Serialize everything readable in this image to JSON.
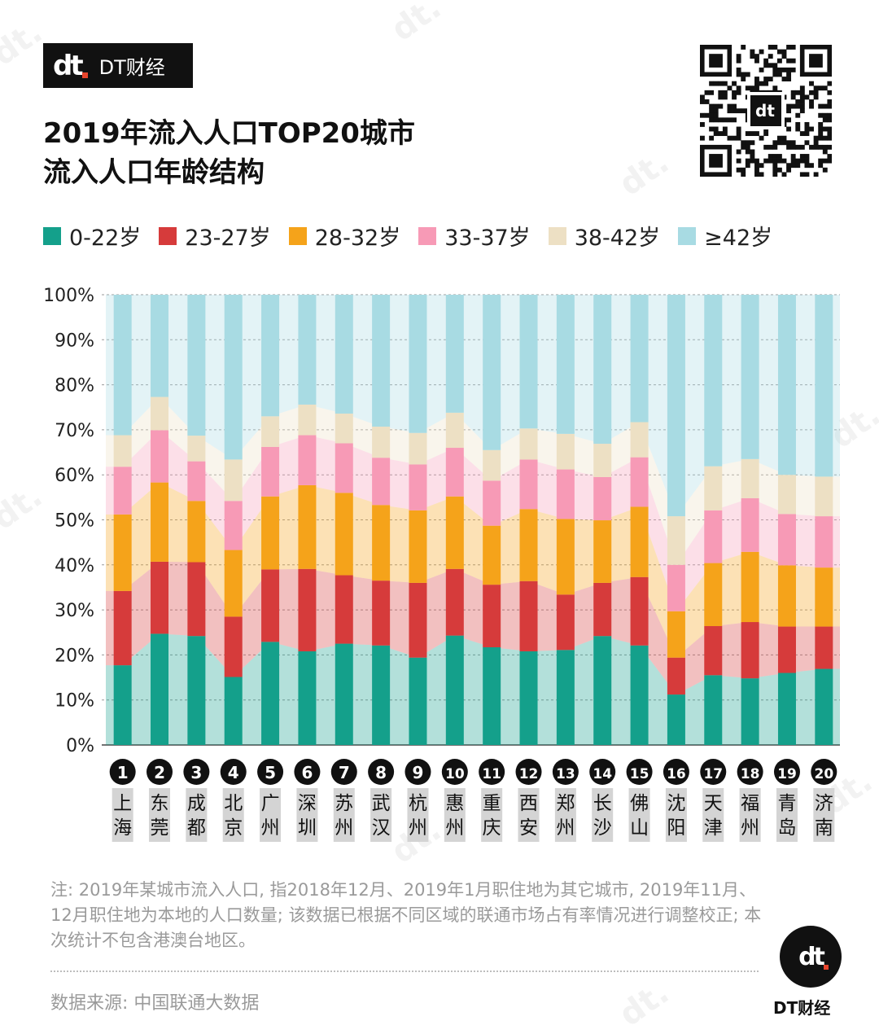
{
  "brand": {
    "mark": "dt",
    "name": "DT财经"
  },
  "title": {
    "line1": "2019年流入人口TOP20城市",
    "line2": "流入人口年龄结构"
  },
  "colors": {
    "age_0_22": "#14a08b",
    "age_23_27": "#d63b3b",
    "age_28_32": "#f5a31a",
    "age_33_37": "#f79ab6",
    "age_38_42": "#ede0c4",
    "age_42_plus": "#a8dbe3",
    "label_bg": "#d4d4d4"
  },
  "chart_data": {
    "type": "bar",
    "stacked": true,
    "title": "2019年流入人口TOP20城市流入人口年龄结构",
    "ylim": [
      0,
      100
    ],
    "yticks": [
      "0%",
      "10%",
      "20%",
      "30%",
      "40%",
      "50%",
      "60%",
      "70%",
      "80%",
      "90%",
      "100%"
    ],
    "grid": true,
    "legend_position": "top",
    "ranks": [
      "1",
      "2",
      "3",
      "4",
      "5",
      "6",
      "7",
      "8",
      "9",
      "10",
      "11",
      "12",
      "13",
      "14",
      "15",
      "16",
      "17",
      "18",
      "19",
      "20"
    ],
    "categories": [
      "上海",
      "东莞",
      "成都",
      "北京",
      "广州",
      "深圳",
      "苏州",
      "武汉",
      "杭州",
      "惠州",
      "重庆",
      "西安",
      "郑州",
      "长沙",
      "佛山",
      "沈阳",
      "天津",
      "福州",
      "青岛",
      "济南"
    ],
    "series": [
      {
        "name": "0-22岁",
        "values": [
          17.7,
          24.7,
          24.2,
          15.1,
          22.9,
          20.8,
          22.5,
          22.1,
          19.4,
          24.3,
          21.7,
          20.8,
          21.1,
          24.2,
          22.1,
          11.2,
          15.5,
          14.8,
          16.0,
          16.9
        ]
      },
      {
        "name": "23-27岁",
        "values": [
          16.5,
          16.0,
          16.4,
          13.4,
          16.1,
          18.3,
          15.2,
          14.4,
          16.6,
          14.8,
          13.9,
          15.6,
          12.3,
          11.8,
          15.2,
          8.2,
          10.9,
          12.5,
          10.3,
          9.4
        ]
      },
      {
        "name": "28-32岁",
        "values": [
          17.0,
          17.6,
          13.6,
          14.8,
          16.2,
          18.6,
          18.3,
          16.8,
          16.1,
          16.1,
          13.1,
          16.0,
          16.8,
          13.9,
          15.6,
          10.3,
          14.0,
          15.6,
          13.6,
          13.1
        ]
      },
      {
        "name": "33-37岁",
        "values": [
          10.6,
          11.6,
          8.8,
          10.9,
          11.0,
          11.1,
          11.0,
          10.5,
          10.2,
          10.8,
          10.0,
          11.0,
          11.0,
          9.6,
          11.0,
          10.3,
          11.7,
          11.9,
          11.4,
          11.4
        ]
      },
      {
        "name": "38-42岁",
        "values": [
          7.0,
          7.4,
          5.7,
          9.2,
          6.8,
          6.8,
          6.6,
          6.9,
          7.0,
          7.8,
          6.8,
          6.9,
          7.9,
          7.4,
          7.8,
          10.8,
          9.8,
          8.7,
          8.7,
          8.8
        ]
      },
      {
        "name": "≥42岁",
        "values": [
          31.2,
          22.7,
          31.3,
          36.6,
          27.0,
          24.4,
          26.4,
          29.3,
          30.7,
          26.2,
          34.5,
          29.7,
          30.9,
          33.1,
          28.3,
          49.2,
          38.1,
          36.5,
          40.0,
          40.4
        ]
      }
    ]
  },
  "note": "注: 2019年某城市流入人口, 指2018年12月、2019年1月职住地为其它城市, 2019年11月、12月职住地为本地的人口数量; 该数据已根据不同区域的联通市场占有率情况进行调整校正; 本次统计不包含港澳台地区。",
  "source": "数据来源: 中国联通大数据",
  "footer_brand": "DT财经"
}
